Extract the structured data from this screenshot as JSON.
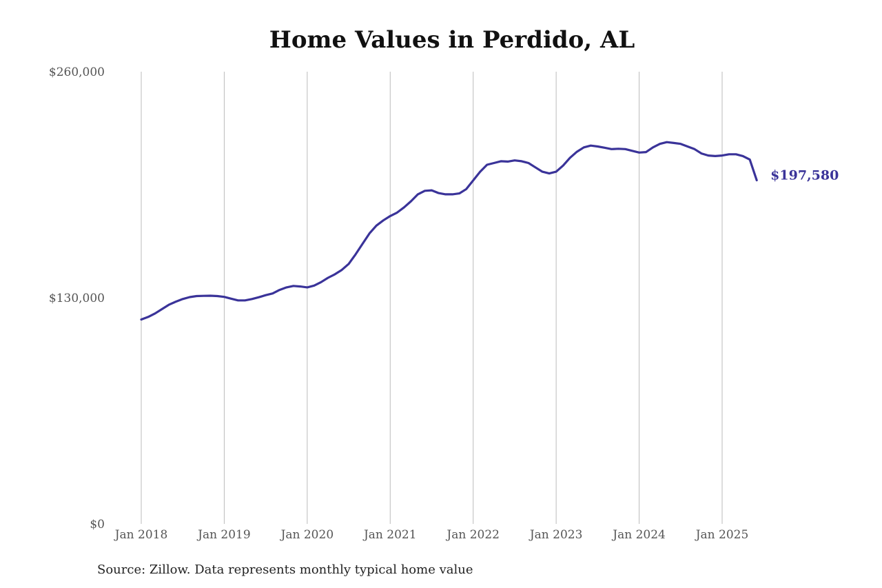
{
  "chart_data": {
    "type": "line",
    "title": "Home Values in Perdido, AL",
    "source": "Source: Zillow. Data represents monthly typical home value",
    "colors": {
      "line": "#3a3399",
      "grid": "#bbbbbb",
      "tick": "#555555"
    },
    "grid": {
      "vertical": true,
      "horizontal": false
    },
    "xlabel": "",
    "ylabel": "",
    "ylim": [
      0,
      260000
    ],
    "yticks": [
      {
        "value": 0,
        "label": "$0"
      },
      {
        "value": 130000,
        "label": "$130,000"
      },
      {
        "value": 260000,
        "label": "$260,000"
      }
    ],
    "xlim": [
      "2018-01",
      "2025-07"
    ],
    "xticks": [
      {
        "date": "2018-01",
        "label": "Jan 2018"
      },
      {
        "date": "2019-01",
        "label": "Jan 2019"
      },
      {
        "date": "2020-01",
        "label": "Jan 2020"
      },
      {
        "date": "2021-01",
        "label": "Jan 2021"
      },
      {
        "date": "2022-01",
        "label": "Jan 2022"
      },
      {
        "date": "2023-01",
        "label": "Jan 2023"
      },
      {
        "date": "2024-01",
        "label": "Jan 2024"
      },
      {
        "date": "2025-01",
        "label": "Jan 2025"
      }
    ],
    "end_label": "$197,580",
    "series": [
      {
        "name": "",
        "points": [
          [
            "2018-01",
            117500
          ],
          [
            "2018-02",
            119000
          ],
          [
            "2018-03",
            121000
          ],
          [
            "2018-04",
            123500
          ],
          [
            "2018-05",
            126000
          ],
          [
            "2018-06",
            127800
          ],
          [
            "2018-07",
            129300
          ],
          [
            "2018-08",
            130400
          ],
          [
            "2018-09",
            131000
          ],
          [
            "2018-10",
            131100
          ],
          [
            "2018-11",
            131200
          ],
          [
            "2018-12",
            131000
          ],
          [
            "2019-01",
            130500
          ],
          [
            "2019-02",
            129500
          ],
          [
            "2019-03",
            128500
          ],
          [
            "2019-04",
            128500
          ],
          [
            "2019-05",
            129300
          ],
          [
            "2019-06",
            130300
          ],
          [
            "2019-07",
            131500
          ],
          [
            "2019-08",
            132500
          ],
          [
            "2019-09",
            134500
          ],
          [
            "2019-10",
            136000
          ],
          [
            "2019-11",
            136800
          ],
          [
            "2019-12",
            136500
          ],
          [
            "2020-01",
            136000
          ],
          [
            "2020-02",
            137000
          ],
          [
            "2020-03",
            139000
          ],
          [
            "2020-04",
            141500
          ],
          [
            "2020-05",
            143500
          ],
          [
            "2020-06",
            146000
          ],
          [
            "2020-07",
            149500
          ],
          [
            "2020-08",
            155000
          ],
          [
            "2020-09",
            161000
          ],
          [
            "2020-10",
            167000
          ],
          [
            "2020-11",
            171500
          ],
          [
            "2020-12",
            174500
          ],
          [
            "2021-01",
            177000
          ],
          [
            "2021-02",
            179000
          ],
          [
            "2021-03",
            182000
          ],
          [
            "2021-04",
            185500
          ],
          [
            "2021-05",
            189500
          ],
          [
            "2021-06",
            191500
          ],
          [
            "2021-07",
            191800
          ],
          [
            "2021-08",
            190200
          ],
          [
            "2021-09",
            189500
          ],
          [
            "2021-10",
            189500
          ],
          [
            "2021-11",
            190000
          ],
          [
            "2021-12",
            192500
          ],
          [
            "2022-01",
            197500
          ],
          [
            "2022-02",
            202500
          ],
          [
            "2022-03",
            206500
          ],
          [
            "2022-04",
            207500
          ],
          [
            "2022-05",
            208500
          ],
          [
            "2022-06",
            208300
          ],
          [
            "2022-07",
            209000
          ],
          [
            "2022-08",
            208500
          ],
          [
            "2022-09",
            207500
          ],
          [
            "2022-10",
            205000
          ],
          [
            "2022-11",
            202500
          ],
          [
            "2022-12",
            201500
          ],
          [
            "2023-01",
            202500
          ],
          [
            "2023-02",
            206000
          ],
          [
            "2023-03",
            210500
          ],
          [
            "2023-04",
            214000
          ],
          [
            "2023-05",
            216500
          ],
          [
            "2023-06",
            217500
          ],
          [
            "2023-07",
            217000
          ],
          [
            "2023-08",
            216300
          ],
          [
            "2023-09",
            215500
          ],
          [
            "2023-10",
            215700
          ],
          [
            "2023-11",
            215500
          ],
          [
            "2023-12",
            214500
          ],
          [
            "2024-01",
            213500
          ],
          [
            "2024-02",
            213800
          ],
          [
            "2024-03",
            216500
          ],
          [
            "2024-04",
            218500
          ],
          [
            "2024-05",
            219500
          ],
          [
            "2024-06",
            219000
          ],
          [
            "2024-07",
            218500
          ],
          [
            "2024-08",
            217000
          ],
          [
            "2024-09",
            215500
          ],
          [
            "2024-10",
            213000
          ],
          [
            "2024-11",
            211800
          ],
          [
            "2024-12",
            211500
          ],
          [
            "2025-01",
            211800
          ],
          [
            "2025-02",
            212500
          ],
          [
            "2025-03",
            212500
          ],
          [
            "2025-04",
            211500
          ],
          [
            "2025-05",
            209500
          ],
          [
            "2025-06",
            197580
          ]
        ]
      }
    ]
  }
}
